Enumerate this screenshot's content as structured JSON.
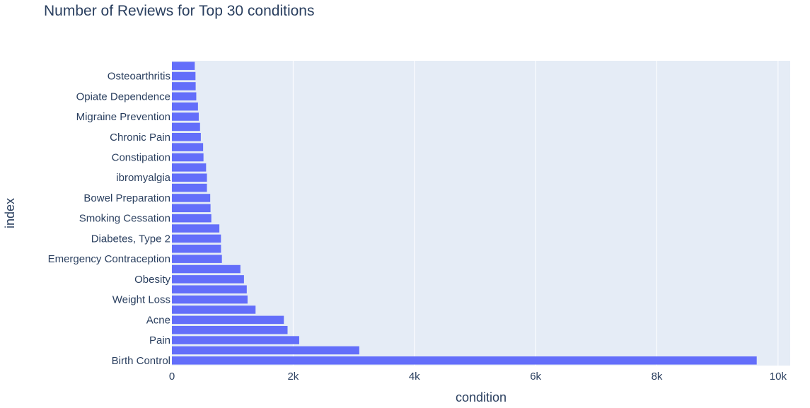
{
  "chart_data": {
    "type": "bar",
    "orientation": "horizontal",
    "title": "Number of Reviews for Top 30 conditions",
    "xlabel": "condition",
    "ylabel": "index",
    "xlim": [
      0,
      10200
    ],
    "x_ticks": [
      0,
      2000,
      4000,
      6000,
      8000,
      10000
    ],
    "x_tick_labels": [
      "0",
      "2k",
      "4k",
      "6k",
      "8k",
      "10k"
    ],
    "grid": true,
    "bar_color": "#636efa",
    "plot_background": "#e5ecf6",
    "text_color": "#2a3f5f",
    "bars": [
      {
        "label": "Birth Control",
        "value": 9648
      },
      {
        "label": "",
        "value": 3091
      },
      {
        "label": "Pain",
        "value": 2100
      },
      {
        "label": "",
        "value": 1908
      },
      {
        "label": "Acne",
        "value": 1847
      },
      {
        "label": "",
        "value": 1380
      },
      {
        "label": "Weight Loss",
        "value": 1248
      },
      {
        "label": "",
        "value": 1235
      },
      {
        "label": "Obesity",
        "value": 1189
      },
      {
        "label": "",
        "value": 1130
      },
      {
        "label": "Emergency Contraception",
        "value": 825
      },
      {
        "label": "",
        "value": 810
      },
      {
        "label": "Diabetes, Type 2",
        "value": 809
      },
      {
        "label": "",
        "value": 783
      },
      {
        "label": "Smoking Cessation",
        "value": 650
      },
      {
        "label": "",
        "value": 637
      },
      {
        "label": "Bowel Preparation",
        "value": 632
      },
      {
        "label": "",
        "value": 578
      },
      {
        "label": "ibromyalgia",
        "value": 578
      },
      {
        "label": "",
        "value": 564
      },
      {
        "label": "Constipation",
        "value": 521
      },
      {
        "label": "",
        "value": 515
      },
      {
        "label": "Chronic Pain",
        "value": 477
      },
      {
        "label": "",
        "value": 464
      },
      {
        "label": "Migraine Prevention",
        "value": 443
      },
      {
        "label": "",
        "value": 430
      },
      {
        "label": "Opiate Dependence",
        "value": 402
      },
      {
        "label": "",
        "value": 392
      },
      {
        "label": "Osteoarthritis",
        "value": 389
      },
      {
        "label": "",
        "value": 377
      }
    ]
  }
}
